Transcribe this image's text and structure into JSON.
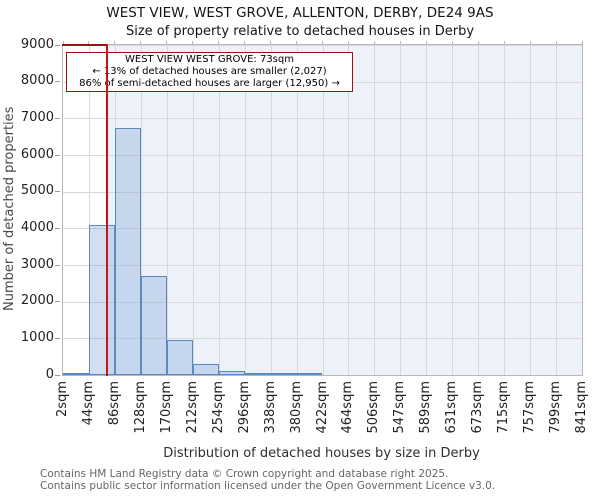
{
  "chart_data": {
    "type": "bar",
    "title": "WEST VIEW, WEST GROVE, ALLENTON, DERBY, DE24 9AS",
    "subtitle": "Size of property relative to detached houses in Derby",
    "xlabel": "Distribution of detached houses by size in Derby",
    "ylabel": "Number of detached properties",
    "x_tick_labels": [
      "2sqm",
      "44sqm",
      "86sqm",
      "128sqm",
      "170sqm",
      "212sqm",
      "254sqm",
      "296sqm",
      "338sqm",
      "380sqm",
      "422sqm",
      "464sqm",
      "506sqm",
      "547sqm",
      "589sqm",
      "631sqm",
      "673sqm",
      "715sqm",
      "757sqm",
      "799sqm",
      "841sqm"
    ],
    "y_ticks": [
      0,
      1000,
      2000,
      3000,
      4000,
      5000,
      6000,
      7000,
      8000,
      9000
    ],
    "ylim": [
      0,
      9000
    ],
    "x_range_sqm": [
      2,
      842
    ],
    "bin_width_sqm": 42,
    "values": [
      30,
      4100,
      6750,
      2700,
      950,
      300,
      100,
      45,
      15,
      10,
      0,
      0,
      0,
      0,
      0,
      0,
      0,
      0,
      0,
      0
    ],
    "marker": {
      "label": "WEST VIEW WEST GROVE",
      "value_sqm": 73
    },
    "grid": true,
    "legend": null,
    "colors": {
      "bar_fill": "rgba(125,162,213,0.35)",
      "bar_edge": "#5a8ac2",
      "shade": "#edf2fa",
      "gridline": "#d8d8d8",
      "axis": "#b8b8b8",
      "marker_line": "#cc1111",
      "top_left_segment": "#971414",
      "annotation_border": "#a21212"
    }
  },
  "annotation": {
    "line1": "WEST VIEW WEST GROVE: 73sqm",
    "line2": "← 13% of detached houses are smaller (2,027)",
    "line3": "86% of semi-detached houses are larger (12,950) →"
  },
  "footer": {
    "line1": "Contains HM Land Registry data © Crown copyright and database right 2025.",
    "line2": "Contains public sector information licensed under the Open Government Licence v3.0."
  }
}
